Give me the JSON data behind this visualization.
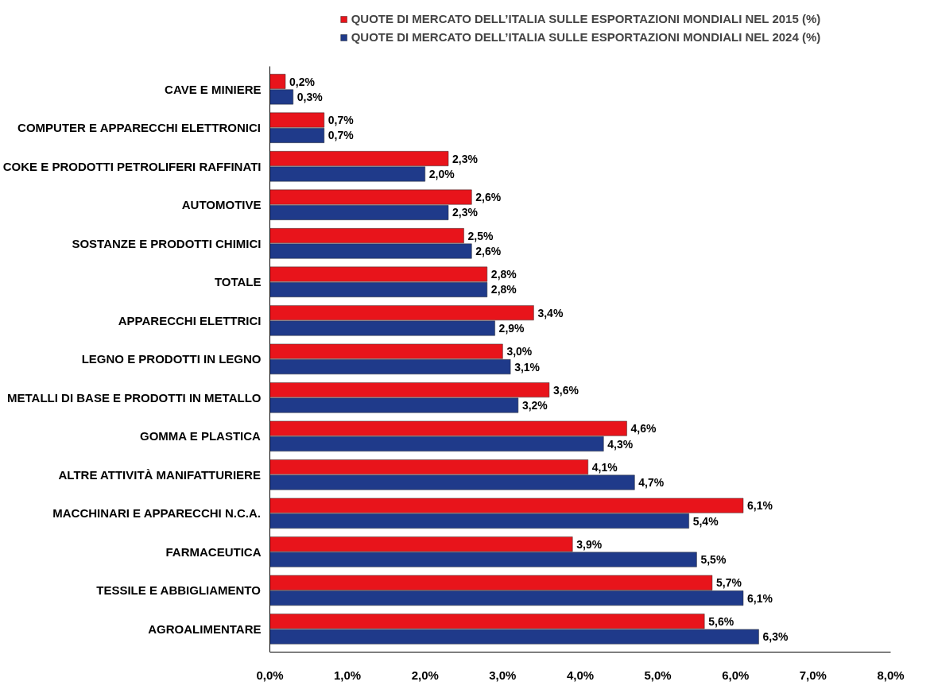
{
  "chart_data": {
    "type": "bar",
    "orientation": "horizontal",
    "categories": [
      "CAVE E MINIERE",
      "COMPUTER E APPARECCHI ELETTRONICI",
      "COKE E PRODOTTI PETROLIFERI RAFFINATI",
      "AUTOMOTIVE",
      "SOSTANZE E PRODOTTI CHIMICI",
      "TOTALE",
      "APPARECCHI ELETTRICI",
      "LEGNO E PRODOTTI IN LEGNO",
      "METALLI DI BASE E PRODOTTI IN METALLO",
      "GOMMA E PLASTICA",
      "ALTRE ATTIVITÀ MANIFATTURIERE",
      "MACCHINARI E APPARECCHI N.C.A.",
      "FARMACEUTICA",
      "TESSILE E ABBIGLIAMENTO",
      "AGROALIMENTARE"
    ],
    "series": [
      {
        "name": "QUOTE DI MERCATO DELL’ITALIA SULLE ESPORTAZIONI MONDIALI NEL 2015 (%)",
        "color": "#e8141b",
        "values": [
          0.2,
          0.7,
          2.3,
          2.6,
          2.5,
          2.8,
          3.4,
          3.0,
          3.6,
          4.6,
          4.1,
          6.1,
          3.9,
          5.7,
          5.6
        ],
        "value_labels": [
          "0,2%",
          "0,7%",
          "2,3%",
          "2,6%",
          "2,5%",
          "2,8%",
          "3,4%",
          "3,0%",
          "3,6%",
          "4,6%",
          "4,1%",
          "6,1%",
          "3,9%",
          "5,7%",
          "5,6%"
        ]
      },
      {
        "name": "QUOTE DI MERCATO DELL’ITALIA SULLE ESPORTAZIONI MONDIALI NEL 2024 (%)",
        "color": "#1f3a8a",
        "values": [
          0.3,
          0.7,
          2.0,
          2.3,
          2.6,
          2.8,
          2.9,
          3.1,
          3.2,
          4.3,
          4.7,
          5.4,
          5.5,
          6.1,
          6.3
        ],
        "value_labels": [
          "0,3%",
          "0,7%",
          "2,0%",
          "2,3%",
          "2,6%",
          "2,8%",
          "2,9%",
          "3,1%",
          "3,2%",
          "4,3%",
          "4,7%",
          "5,4%",
          "5,5%",
          "6,1%",
          "6,3%"
        ]
      }
    ],
    "xlim": [
      0,
      8
    ],
    "xticks": [
      {
        "value": 0,
        "label": "0,0%"
      },
      {
        "value": 1,
        "label": "1,0%"
      },
      {
        "value": 2,
        "label": "2,0%"
      },
      {
        "value": 3,
        "label": "3,0%"
      },
      {
        "value": 4,
        "label": "4,0%"
      },
      {
        "value": 5,
        "label": "5,0%"
      },
      {
        "value": 6,
        "label": "6,0%"
      },
      {
        "value": 7,
        "label": "7,0%"
      },
      {
        "value": 8,
        "label": "8,0%"
      }
    ],
    "grid": false,
    "legend": "top"
  }
}
